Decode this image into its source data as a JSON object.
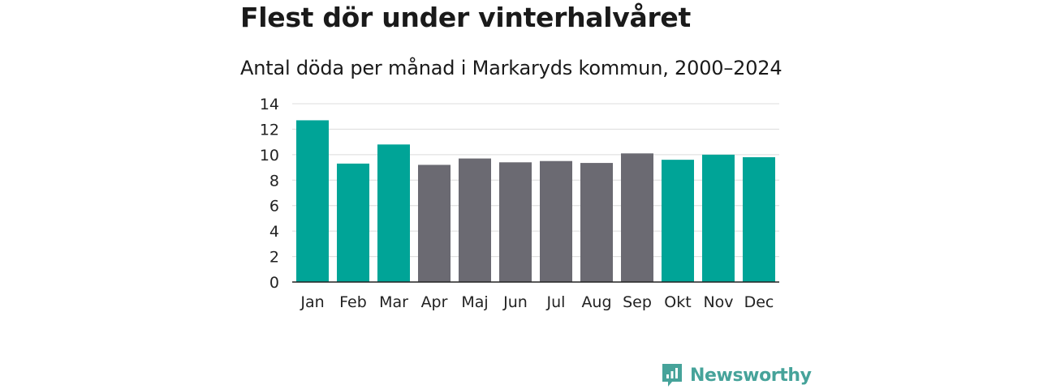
{
  "chart_data": {
    "type": "bar",
    "title": "Flest dör under vinterhalvåret",
    "subtitle": "Antal döda per månad i Markaryds kommun, 2000–2024",
    "xlabel": "",
    "ylabel": "",
    "categories": [
      "Jan",
      "Feb",
      "Mar",
      "Apr",
      "Maj",
      "Jun",
      "Jul",
      "Aug",
      "Sep",
      "Okt",
      "Nov",
      "Dec"
    ],
    "values": [
      12.7,
      9.3,
      10.8,
      9.2,
      9.7,
      9.4,
      9.5,
      9.35,
      10.1,
      9.6,
      10.0,
      9.8
    ],
    "highlighted": [
      true,
      true,
      true,
      false,
      false,
      false,
      false,
      false,
      false,
      true,
      true,
      true
    ],
    "ylim": [
      0,
      14
    ],
    "yticks": [
      0,
      2,
      4,
      6,
      8,
      10,
      12,
      14
    ],
    "grid": true,
    "colors": {
      "highlight": "#00a497",
      "normal": "#6b6a72"
    }
  },
  "brand": {
    "name": "Newsworthy",
    "color": "#46a39a"
  }
}
